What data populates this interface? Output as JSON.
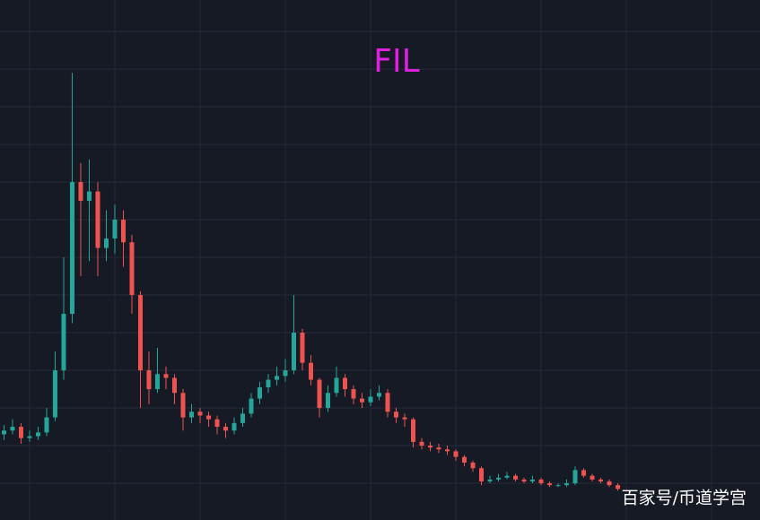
{
  "chart_data": {
    "type": "candlestick",
    "title": "FIL",
    "title_color": "#e020e0",
    "annotation": "百家号/币道学宫",
    "up_color": "#26a69a",
    "down_color": "#ef5350",
    "grid": true,
    "xlim": [
      -0.47,
      88.68
    ],
    "xticks": [
      3,
      13,
      23,
      33,
      43,
      53,
      63,
      73,
      83
    ],
    "ylim": [
      -9.5,
      266.7
    ],
    "yticks": [
      10,
      30,
      50,
      70,
      90,
      110,
      130,
      150,
      170,
      190,
      210,
      230,
      250
    ],
    "open": [
      36,
      38,
      40,
      34,
      35,
      37,
      45,
      70,
      100,
      170,
      160,
      165,
      135,
      140,
      150,
      138,
      110,
      70,
      60,
      68,
      66,
      58,
      45,
      48,
      46,
      44,
      40,
      38,
      42,
      47,
      55,
      61,
      65,
      67,
      70,
      90,
      74,
      65,
      50,
      58,
      66,
      60,
      55,
      53,
      56,
      58,
      48,
      45,
      44,
      32,
      30,
      29,
      28,
      27,
      24,
      21,
      18,
      11,
      12,
      13,
      14,
      12,
      11,
      12,
      10,
      9,
      9,
      10,
      17,
      14,
      12,
      11,
      9
    ],
    "high": [
      41,
      44,
      42,
      38,
      40,
      50,
      80,
      130,
      228,
      180,
      182,
      170,
      155,
      158,
      155,
      142,
      112,
      80,
      82,
      72,
      68,
      60,
      52,
      50,
      48,
      46,
      42,
      45,
      50,
      58,
      64,
      68,
      72,
      76,
      110,
      92,
      78,
      66,
      62,
      72,
      68,
      62,
      58,
      60,
      62,
      60,
      50,
      47,
      45,
      34,
      32,
      31,
      30,
      28,
      25,
      22,
      19,
      14,
      15,
      16,
      15,
      13,
      14,
      13,
      11,
      10,
      12,
      19,
      18,
      15,
      13,
      12,
      10
    ],
    "low": [
      33,
      36,
      31,
      32,
      33,
      35,
      43,
      65,
      95,
      120,
      128,
      120,
      128,
      132,
      125,
      100,
      50,
      52,
      58,
      60,
      52,
      38,
      42,
      42,
      40,
      36,
      34,
      36,
      40,
      45,
      52,
      58,
      62,
      64,
      68,
      70,
      62,
      45,
      48,
      56,
      56,
      52,
      50,
      51,
      54,
      45,
      42,
      40,
      29,
      28,
      27,
      26,
      25,
      22,
      19,
      16,
      9,
      10,
      11,
      12,
      11,
      10,
      10,
      9,
      8,
      8,
      8,
      9,
      13,
      11,
      10,
      8,
      6
    ],
    "close": [
      38,
      40,
      34,
      35,
      37,
      45,
      70,
      100,
      170,
      160,
      165,
      135,
      140,
      150,
      138,
      110,
      70,
      60,
      68,
      66,
      58,
      45,
      48,
      46,
      44,
      40,
      38,
      42,
      47,
      55,
      61,
      65,
      67,
      70,
      90,
      74,
      65,
      50,
      58,
      66,
      60,
      55,
      53,
      56,
      58,
      48,
      45,
      44,
      32,
      30,
      29,
      28,
      27,
      24,
      21,
      18,
      11,
      12,
      13,
      14,
      12,
      11,
      12,
      10,
      9,
      9,
      10,
      17,
      14,
      12,
      11,
      9,
      7
    ]
  }
}
